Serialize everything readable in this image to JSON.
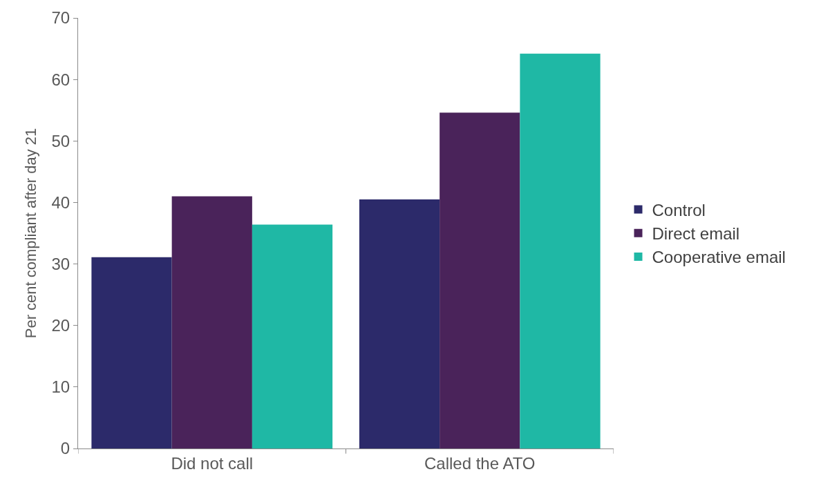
{
  "chart_data": {
    "type": "bar",
    "ylabel": "Per cent compliant after day 21",
    "categories": [
      "Did not call",
      "Called the ATO"
    ],
    "series": [
      {
        "name": "Control",
        "color": "#2c2a6a",
        "values": [
          31.1,
          40.5
        ]
      },
      {
        "name": "Direct email",
        "color": "#4a235a",
        "values": [
          41.0,
          54.6
        ]
      },
      {
        "name": "Cooperative email",
        "color": "#1fb8a5",
        "values": [
          36.4,
          64.2
        ]
      }
    ],
    "ylim": [
      0,
      70
    ],
    "yticks": [
      0,
      10,
      20,
      30,
      40,
      50,
      60,
      70
    ],
    "legend": "right"
  }
}
